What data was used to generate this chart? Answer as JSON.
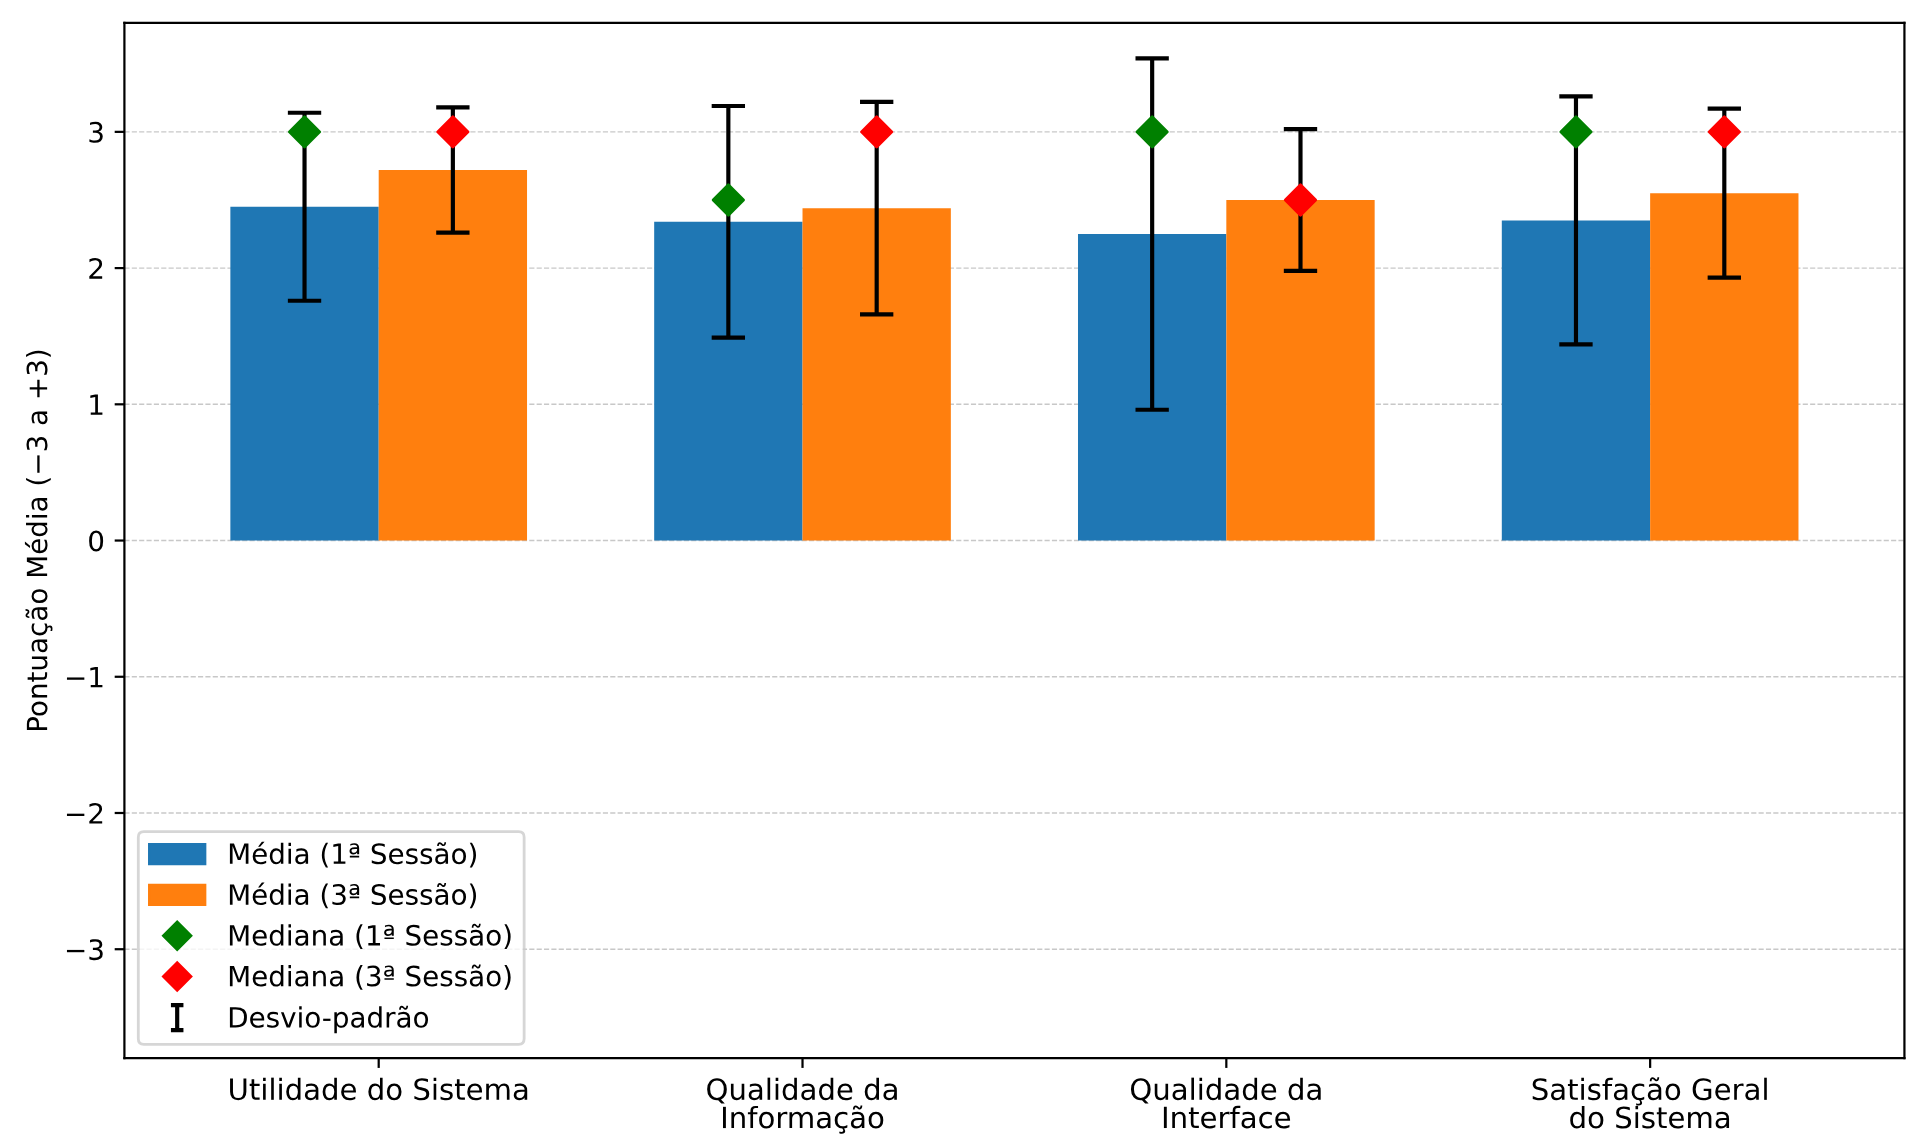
{
  "chart_data": {
    "type": "bar",
    "ylabel": "Pontuação Média (−3 a +3)",
    "categories": [
      "Utilidade do Sistema",
      "Qualidade da\nInformação",
      "Qualidade da\nInterface",
      "Satisfação Geral\ndo Sistema"
    ],
    "series": [
      {
        "name": "Média (1ª Sessão)",
        "color": "#1f77b4",
        "values": [
          2.45,
          2.34,
          2.25,
          2.35
        ],
        "errors": [
          0.69,
          0.85,
          1.29,
          0.91
        ]
      },
      {
        "name": "Média (3ª Sessão)",
        "color": "#ff7f0e",
        "values": [
          2.72,
          2.44,
          2.5,
          2.55
        ],
        "errors": [
          0.46,
          0.78,
          0.52,
          0.62
        ]
      },
      {
        "type": "scatter",
        "name": "Mediana (1ª Sessão)",
        "color": "#008000",
        "marker": "diamond",
        "values": [
          3,
          2.5,
          3,
          3
        ]
      },
      {
        "type": "scatter",
        "name": "Mediana (3ª Sessão)",
        "color": "#ff0000",
        "marker": "diamond",
        "values": [
          3,
          3,
          2.5,
          3
        ]
      }
    ],
    "annotations": [
      "Desvio-padrão"
    ],
    "ylim": [
      -3.8,
      3.8
    ],
    "yticks": [
      {
        "value": -3,
        "label": "−3"
      },
      {
        "value": -2,
        "label": "−2"
      },
      {
        "value": -1,
        "label": "−1"
      },
      0,
      1,
      2,
      3
    ],
    "grid": "y",
    "legend": "bottom left"
  }
}
